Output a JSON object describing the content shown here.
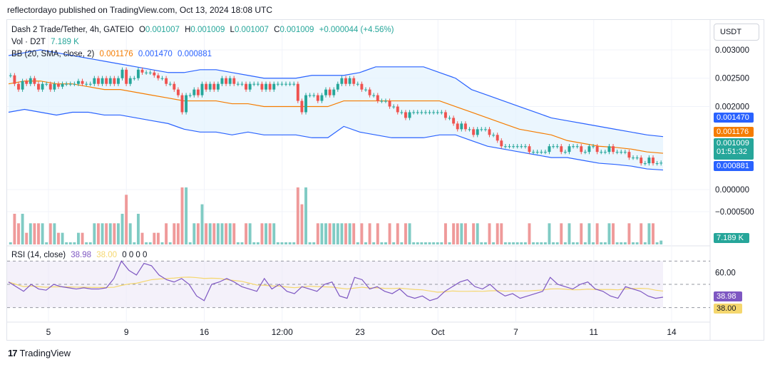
{
  "header": {
    "text": "reflectordayo published on TradingView.com, Oct 13, 2024 18:08 UTC"
  },
  "legend": {
    "symbol": "Dash 2 Trade/Tether, 4h, GATEIO",
    "o_label": "O",
    "o_value": "0.001007",
    "h_label": "H",
    "h_value": "0.001009",
    "l_label": "L",
    "l_value": "0.001007",
    "c_label": "C",
    "c_value": "0.001009",
    "change": "+0.000044 (+4.56%)",
    "vol_label": "Vol · D2T",
    "vol_value": "7.189 K",
    "bb_label": "BB (20, SMA, close, 2)",
    "bb_basis": "0.001176",
    "bb_upper": "0.001470",
    "bb_lower": "0.000881",
    "rsi_label": "RSI (14, close)",
    "rsi_value": "38.98",
    "rsi_ma": "38.00",
    "rsi_extra": "0  0  0  0"
  },
  "currency": "USDT",
  "price_tags": {
    "upper": "0.001470",
    "basis": "0.001176",
    "last": "0.001009",
    "countdown": "01:51:32",
    "lower": "0.000881",
    "volume": "7.189 K",
    "rsi": "38.98",
    "rsi_ma": "38.00"
  },
  "colors": {
    "up": "#26a69a",
    "down": "#ef5350",
    "bb_band": "#2962ff",
    "bb_basis": "#f57c00",
    "bb_fill": "#e3f2fd",
    "rsi_line": "#7e57c2",
    "rsi_ma": "#f5d76e",
    "rsi_fill": "#ede7f6",
    "vol_up": "#80cbc4",
    "vol_down": "#ef9a9a"
  },
  "branding": {
    "name": "TradingView"
  },
  "chart_data": {
    "type": "candlestick",
    "price_axis_ticks": [
      "0.003000",
      "0.002500",
      "0.002000",
      "0.000000",
      "−0.000500"
    ],
    "price_axis_values": [
      0.003,
      0.0025,
      0.002
    ],
    "price_axis_lower_values": [
      0.0,
      -0.0005
    ],
    "rsi_axis_ticks": [
      "60.00"
    ],
    "time_axis_ticks": [
      "5",
      "9",
      "16",
      "12:00",
      "23",
      "Oct",
      "7",
      "11",
      "14"
    ],
    "candles_close": [
      0.00255,
      0.0024,
      0.0023,
      0.00245,
      0.0024,
      0.0025,
      0.0024,
      0.0023,
      0.0024,
      0.0024,
      0.0023,
      0.0024,
      0.00235,
      0.0024,
      0.0024,
      0.0024,
      0.0024,
      0.00245,
      0.0024,
      0.0024,
      0.0024,
      0.0025,
      0.0024,
      0.0025,
      0.0024,
      0.0025,
      0.0024,
      0.0025,
      0.00265,
      0.0024,
      0.0025,
      0.0025,
      0.00265,
      0.0026,
      0.0026,
      0.0026,
      0.00255,
      0.0025,
      0.0025,
      0.0024,
      0.0024,
      0.0023,
      0.0022,
      0.0019,
      0.0022,
      0.0022,
      0.0023,
      0.0022,
      0.0024,
      0.0023,
      0.0024,
      0.0023,
      0.0024,
      0.0025,
      0.0024,
      0.0025,
      0.0024,
      0.0024,
      0.0024,
      0.0023,
      0.0024,
      0.0024,
      0.0024,
      0.0023,
      0.0024,
      0.0023,
      0.0024,
      0.0024,
      0.0024,
      0.0024,
      0.0024,
      0.0024,
      0.0021,
      0.0019,
      0.0022,
      0.0022,
      0.0022,
      0.0021,
      0.0022,
      0.0023,
      0.0022,
      0.0023,
      0.0024,
      0.0025,
      0.0024,
      0.0025,
      0.0024,
      0.0024,
      0.0023,
      0.0023,
      0.0022,
      0.0022,
      0.0021,
      0.0021,
      0.0021,
      0.002,
      0.002,
      0.0019,
      0.0019,
      0.0018,
      0.0019,
      0.0019,
      0.0019,
      0.0019,
      0.0019,
      0.0019,
      0.0019,
      0.0019,
      0.0019,
      0.0018,
      0.0018,
      0.0017,
      0.0016,
      0.0017,
      0.0016,
      0.0016,
      0.0015,
      0.0016,
      0.0016,
      0.0016,
      0.0015,
      0.0015,
      0.0014,
      0.0013,
      0.0013,
      0.0013,
      0.0013,
      0.0013,
      0.0013,
      0.0013,
      0.0012,
      0.0012,
      0.0012,
      0.0012,
      0.0012,
      0.0013,
      0.0013,
      0.0013,
      0.0012,
      0.0012,
      0.0013,
      0.0013,
      0.0013,
      0.0012,
      0.0012,
      0.0013,
      0.0013,
      0.0012,
      0.0012,
      0.0012,
      0.0013,
      0.0012,
      0.0012,
      0.0012,
      0.0012,
      0.0011,
      0.0011,
      0.0011,
      0.001,
      0.001,
      0.0011,
      0.001,
      0.001,
      0.001009
    ],
    "bb_upper": [
      0.0029,
      0.00295,
      0.003,
      0.00295,
      0.0029,
      0.00285,
      0.0028,
      0.00275,
      0.0027,
      0.00265,
      0.0026,
      0.0026,
      0.00265,
      0.00265,
      0.0026,
      0.00255,
      0.0025,
      0.0025,
      0.0025,
      0.00255,
      0.00255,
      0.00255,
      0.0026,
      0.0027,
      0.0027,
      0.0027,
      0.0027,
      0.0026,
      0.0025,
      0.0023,
      0.0022,
      0.0021,
      0.002,
      0.0019,
      0.0018,
      0.00175,
      0.0017,
      0.00165,
      0.0016,
      0.00155,
      0.0015,
      0.00147
    ],
    "bb_basis": [
      0.0024,
      0.00245,
      0.00245,
      0.0024,
      0.0024,
      0.00235,
      0.0023,
      0.0023,
      0.00225,
      0.0022,
      0.00215,
      0.0021,
      0.0021,
      0.0021,
      0.00205,
      0.00205,
      0.002,
      0.002,
      0.002,
      0.002,
      0.002,
      0.0021,
      0.0021,
      0.0021,
      0.0021,
      0.0021,
      0.0021,
      0.0021,
      0.002,
      0.0019,
      0.0018,
      0.0017,
      0.0016,
      0.00155,
      0.0015,
      0.0014,
      0.00135,
      0.0013,
      0.00128,
      0.00125,
      0.0012,
      0.001176
    ],
    "bb_lower": [
      0.0019,
      0.00195,
      0.0019,
      0.00185,
      0.0019,
      0.0019,
      0.00185,
      0.00185,
      0.0018,
      0.00175,
      0.0017,
      0.0016,
      0.00155,
      0.00155,
      0.0015,
      0.00155,
      0.0015,
      0.0015,
      0.0015,
      0.00145,
      0.00145,
      0.00165,
      0.00155,
      0.0015,
      0.00145,
      0.00145,
      0.00145,
      0.0015,
      0.0015,
      0.0014,
      0.0013,
      0.00125,
      0.0012,
      0.00115,
      0.0011,
      0.0011,
      0.00105,
      0.001,
      0.00098,
      0.00095,
      0.0009,
      0.000881
    ],
    "rsi": [
      52,
      48,
      44,
      50,
      46,
      45,
      50,
      48,
      47,
      46,
      47,
      46,
      46,
      47,
      55,
      70,
      62,
      58,
      68,
      66,
      58,
      54,
      52,
      55,
      50,
      40,
      36,
      50,
      52,
      55,
      52,
      48,
      46,
      44,
      55,
      46,
      50,
      44,
      42,
      48,
      46,
      44,
      50,
      52,
      40,
      38,
      56,
      54,
      46,
      48,
      44,
      42,
      46,
      40,
      38,
      40,
      36,
      38,
      44,
      48,
      52,
      54,
      48,
      46,
      50,
      44,
      40,
      42,
      38,
      40,
      42,
      44,
      56,
      50,
      48,
      46,
      50,
      52,
      46,
      44,
      40,
      38,
      48,
      46,
      44,
      40,
      38,
      38.98
    ]
  }
}
